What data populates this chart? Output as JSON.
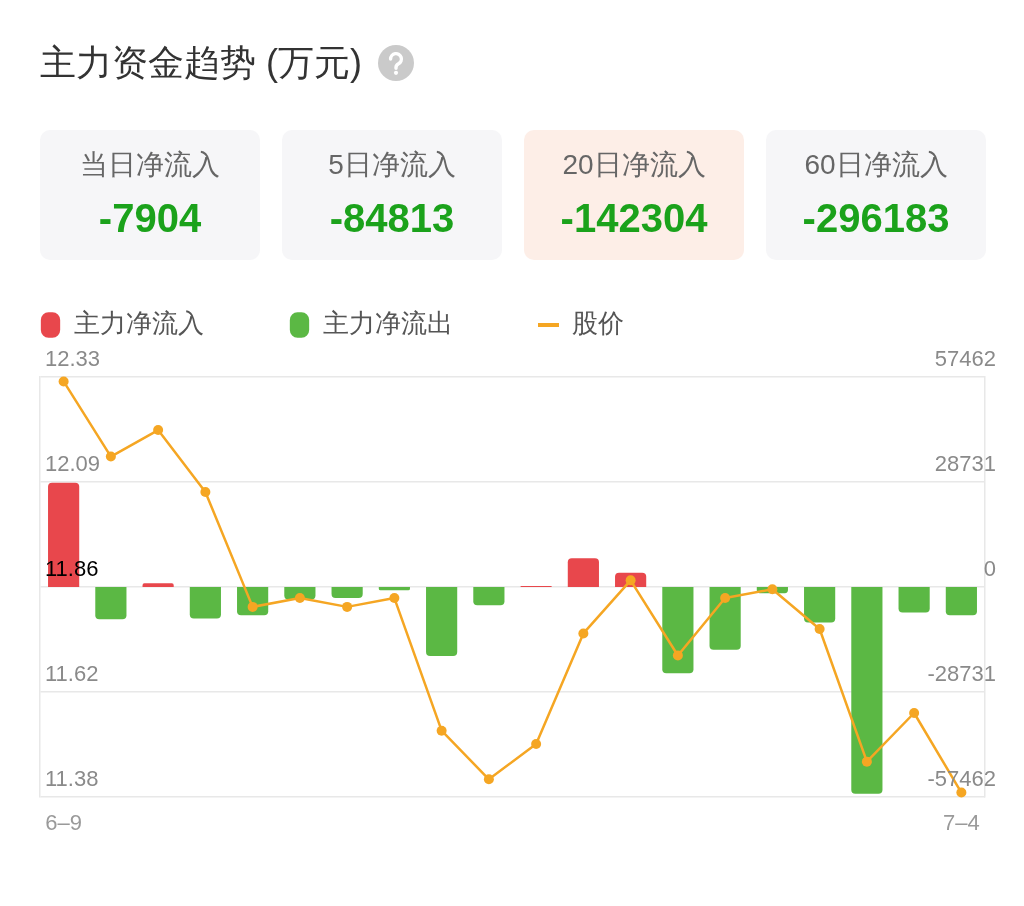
{
  "chart_data": [
    {
      "type": "other",
      "title": "主力资金趋势 (万元)",
      "categories": [
        "当日净流入",
        "5日净流入",
        "20日净流入",
        "60日净流入"
      ],
      "values": [
        -7904,
        -84813,
        -142304,
        -296183
      ],
      "data_labels": true,
      "colors": [
        "#f6f6f8",
        "#f6f6f8",
        "#fdeee7",
        "#f6f6f8"
      ],
      "color": "#1ba21b"
    },
    {
      "type": "bar",
      "categories": [
        "6–9",
        null,
        null,
        null,
        null,
        null,
        null,
        null,
        null,
        null,
        null,
        null,
        null,
        null,
        null,
        null,
        null,
        null,
        null,
        "7–4"
      ],
      "series": [
        {
          "name": "主力净流入",
          "type": "bar",
          "axis": "y2",
          "color": "#e8474c",
          "values": [
            28500,
            null,
            1000,
            null,
            null,
            null,
            null,
            null,
            null,
            null,
            300,
            7900,
            3900,
            null,
            null,
            null,
            null,
            null,
            null,
            null
          ]
        },
        {
          "name": "主力净流出",
          "type": "bar",
          "axis": "y2",
          "color": "#5bb844",
          "values": [
            null,
            -8800,
            null,
            -8600,
            -7700,
            -3400,
            -3000,
            -900,
            -18900,
            -5000,
            null,
            null,
            null,
            -23600,
            -17200,
            -1700,
            -9700,
            -56600,
            -7000,
            -7700
          ]
        },
        {
          "name": "股价",
          "type": "line",
          "axis": "y",
          "color": "#f5a623",
          "values": [
            12.32,
            12.15,
            12.21,
            12.07,
            11.81,
            11.83,
            11.81,
            11.83,
            11.53,
            11.42,
            11.5,
            11.75,
            11.87,
            11.7,
            11.83,
            11.85,
            11.76,
            11.46,
            11.57,
            11.39
          ]
        }
      ],
      "stacked": true,
      "ylim": [
        11.38,
        12.33
      ],
      "yticks": [
        11.38,
        {
          "value": 11.6175,
          "label": "11.62"
        },
        {
          "value": 11.855,
          "label": "11.86"
        },
        {
          "value": 12.0925,
          "label": "12.09"
        },
        12.33
      ],
      "y2lim": [
        -57462,
        57462
      ],
      "y2ticks": [
        -57462,
        -28731,
        0,
        28731,
        57462
      ],
      "grid": "y",
      "legend": "top left",
      "marker": "circle",
      "line_style": "solid"
    }
  ]
}
